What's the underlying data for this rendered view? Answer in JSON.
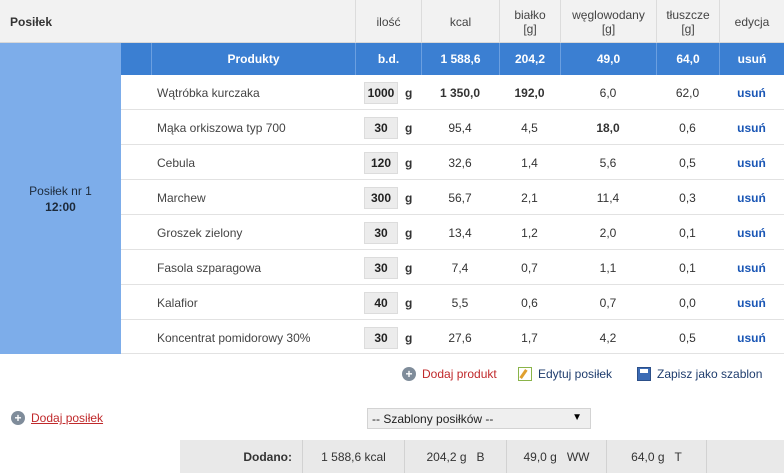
{
  "header": {
    "meal_col": "Posiłek",
    "qty_col": "ilość",
    "kcal_col": "kcal",
    "protein_col": "białko",
    "protein_unit": "[g]",
    "carbs_col": "węglowodany",
    "carbs_unit": "[g]",
    "fat_col": "tłuszcze",
    "fat_unit": "[g]",
    "edit_col": "edycja"
  },
  "meal": {
    "name": "Posiłek nr 1",
    "time": "12:00"
  },
  "products_row": {
    "label": "Produkty",
    "qty": "b.d.",
    "kcal": "1 588,6",
    "protein": "204,2",
    "carbs": "49,0",
    "fat": "64,0",
    "delete": "usuń"
  },
  "items": [
    {
      "name": "Wątróbka kurczaka",
      "qty": "1000",
      "unit": "g",
      "kcal": "1 350,0",
      "protein": "192,0",
      "carbs": "6,0",
      "fat": "62,0",
      "delete": "usuń"
    },
    {
      "name": "Mąka orkiszowa typ 700",
      "qty": "30",
      "unit": "g",
      "kcal": "95,4",
      "protein": "4,5",
      "carbs": "18,0",
      "fat": "0,6",
      "delete": "usuń"
    },
    {
      "name": "Cebula",
      "qty": "120",
      "unit": "g",
      "kcal": "32,6",
      "protein": "1,4",
      "carbs": "5,6",
      "fat": "0,5",
      "delete": "usuń"
    },
    {
      "name": "Marchew",
      "qty": "300",
      "unit": "g",
      "kcal": "56,7",
      "protein": "2,1",
      "carbs": "11,4",
      "fat": "0,3",
      "delete": "usuń"
    },
    {
      "name": "Groszek zielony",
      "qty": "30",
      "unit": "g",
      "kcal": "13,4",
      "protein": "1,2",
      "carbs": "2,0",
      "fat": "0,1",
      "delete": "usuń"
    },
    {
      "name": "Fasola szparagowa",
      "qty": "30",
      "unit": "g",
      "kcal": "7,4",
      "protein": "0,7",
      "carbs": "1,1",
      "fat": "0,1",
      "delete": "usuń"
    },
    {
      "name": "Kalafior",
      "qty": "40",
      "unit": "g",
      "kcal": "5,5",
      "protein": "0,6",
      "carbs": "0,7",
      "fat": "0,0",
      "delete": "usuń"
    },
    {
      "name": "Koncentrat pomidorowy 30%",
      "qty": "30",
      "unit": "g",
      "kcal": "27,6",
      "protein": "1,7",
      "carbs": "4,2",
      "fat": "0,5",
      "delete": "usuń"
    }
  ],
  "actions": {
    "add_product": "Dodaj produkt",
    "edit_meal": "Edytuj posiłek",
    "save_template": "Zapisz jako szablon"
  },
  "add_meal": "Dodaj posiłek",
  "templates_select": {
    "selected": "-- Szablony posiłków --"
  },
  "totals": {
    "label": "Dodano:",
    "kcal": "1 588,6 kcal",
    "protein": "204,2 g",
    "protein_suffix": "B",
    "carbs": "49,0 g",
    "carbs_suffix": "WW",
    "fat": "64,0 g",
    "fat_suffix": "T"
  },
  "colors": {
    "accent": "#3b7fd2",
    "meal_cell": "#7dadea",
    "link_red": "#c0292b",
    "link_blue": "#1a56b5"
  }
}
